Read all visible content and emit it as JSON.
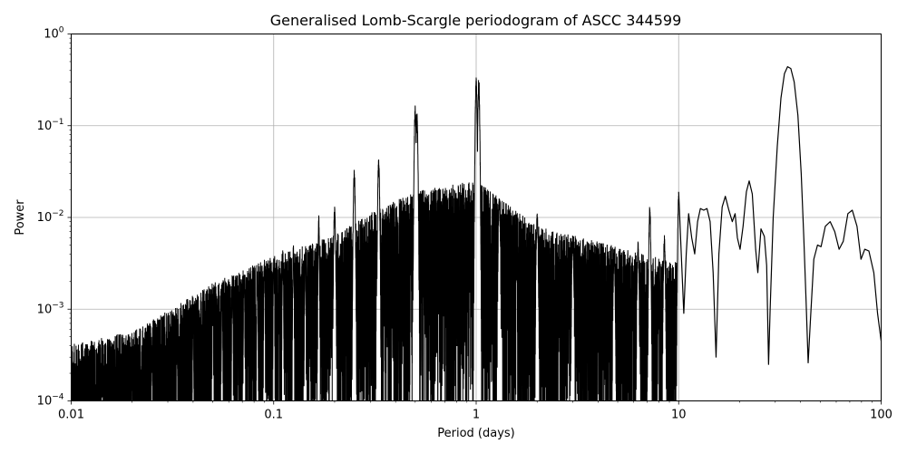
{
  "chart_data": {
    "type": "line",
    "title": "Generalised Lomb-Scargle periodogram of ASCC 344599",
    "xlabel": "Period (days)",
    "ylabel": "Power",
    "xscale": "log",
    "yscale": "log",
    "xlim": [
      0.01,
      100
    ],
    "ylim": [
      0.0001,
      1
    ],
    "grid": true,
    "line_color": "#000000",
    "x_ticks": [
      {
        "value": 0.01,
        "label": "0.01"
      },
      {
        "value": 0.1,
        "label": "0.1"
      },
      {
        "value": 1,
        "label": "1"
      },
      {
        "value": 10,
        "label": "10"
      },
      {
        "value": 100,
        "label": "100"
      }
    ],
    "y_ticks": [
      {
        "value": 0.0001,
        "base": "10",
        "exp": "−4"
      },
      {
        "value": 0.001,
        "base": "10",
        "exp": "−3"
      },
      {
        "value": 0.01,
        "base": "10",
        "exp": "−2"
      },
      {
        "value": 0.1,
        "base": "10",
        "exp": "−1"
      },
      {
        "value": 1,
        "base": "10",
        "exp": "0"
      }
    ],
    "peaks": [
      {
        "period": 1.0,
        "power": 0.34
      },
      {
        "period": 1.03,
        "power": 0.34
      },
      {
        "period": 0.5,
        "power": 0.17
      },
      {
        "period": 0.51,
        "power": 0.14
      },
      {
        "period": 0.33,
        "power": 0.045
      },
      {
        "period": 0.25,
        "power": 0.035
      },
      {
        "period": 0.2,
        "power": 0.014
      },
      {
        "period": 0.167,
        "power": 0.011
      },
      {
        "period": 0.143,
        "power": 0.0045
      },
      {
        "period": 0.125,
        "power": 0.0055
      },
      {
        "period": 0.111,
        "power": 0.0048
      },
      {
        "period": 0.1,
        "power": 0.0038
      },
      {
        "period": 0.09,
        "power": 0.0035
      },
      {
        "period": 0.083,
        "power": 0.0028
      },
      {
        "period": 0.0714,
        "power": 0.0025
      },
      {
        "period": 0.0625,
        "power": 0.0022
      },
      {
        "period": 0.0556,
        "power": 0.0016
      },
      {
        "period": 0.05,
        "power": 0.0012
      },
      {
        "period": 0.04,
        "power": 0.00085
      },
      {
        "period": 0.0333,
        "power": 0.0005
      },
      {
        "period": 0.025,
        "power": 0.00035
      },
      {
        "period": 0.02,
        "power": 0.0002
      },
      {
        "period": 0.0143,
        "power": 0.00018
      },
      {
        "period": 0.0111,
        "power": 0.00017
      },
      {
        "period": 1.3,
        "power": 0.018
      },
      {
        "period": 2.0,
        "power": 0.012
      },
      {
        "period": 3.0,
        "power": 0.0065
      },
      {
        "period": 4.8,
        "power": 0.0045
      },
      {
        "period": 6.3,
        "power": 0.0055
      },
      {
        "period": 7.2,
        "power": 0.014
      },
      {
        "period": 8.5,
        "power": 0.0065
      },
      {
        "period": 10.0,
        "power": 0.019
      }
    ],
    "envelope": [
      {
        "period": 0.01,
        "power": 0.00013
      },
      {
        "period": 0.02,
        "power": 0.00018
      },
      {
        "period": 0.03,
        "power": 0.0003
      },
      {
        "period": 0.05,
        "power": 0.0006
      },
      {
        "period": 0.1,
        "power": 0.0012
      },
      {
        "period": 0.2,
        "power": 0.002
      },
      {
        "period": 0.3,
        "power": 0.0035
      },
      {
        "period": 0.5,
        "power": 0.006
      },
      {
        "period": 1.0,
        "power": 0.008
      },
      {
        "period": 2.0,
        "power": 0.0025
      },
      {
        "period": 5.0,
        "power": 0.0015
      },
      {
        "period": 10.0,
        "power": 0.001
      }
    ],
    "smooth_curve": [
      [
        10.0,
        0.019
      ],
      [
        10.3,
        0.004
      ],
      [
        10.6,
        0.0009
      ],
      [
        10.9,
        0.004
      ],
      [
        11.2,
        0.011
      ],
      [
        11.6,
        0.006
      ],
      [
        12.0,
        0.004
      ],
      [
        12.4,
        0.009
      ],
      [
        12.8,
        0.0125
      ],
      [
        13.3,
        0.012
      ],
      [
        13.8,
        0.0125
      ],
      [
        14.3,
        0.009
      ],
      [
        14.8,
        0.0025
      ],
      [
        15.3,
        0.0003
      ],
      [
        15.8,
        0.004
      ],
      [
        16.4,
        0.013
      ],
      [
        17.0,
        0.017
      ],
      [
        17.7,
        0.012
      ],
      [
        18.4,
        0.009
      ],
      [
        19.0,
        0.011
      ],
      [
        19.5,
        0.006
      ],
      [
        20.1,
        0.0045
      ],
      [
        20.8,
        0.008
      ],
      [
        21.6,
        0.019
      ],
      [
        22.3,
        0.025
      ],
      [
        23.1,
        0.018
      ],
      [
        24.0,
        0.0045
      ],
      [
        24.6,
        0.0025
      ],
      [
        25.5,
        0.0075
      ],
      [
        26.5,
        0.0062
      ],
      [
        27.2,
        0.003
      ],
      [
        27.8,
        0.00025
      ],
      [
        28.3,
        0.001
      ],
      [
        29.3,
        0.01
      ],
      [
        30.7,
        0.06
      ],
      [
        32.0,
        0.2
      ],
      [
        33.3,
        0.37
      ],
      [
        34.5,
        0.44
      ],
      [
        35.8,
        0.42
      ],
      [
        37.2,
        0.3
      ],
      [
        38.8,
        0.13
      ],
      [
        40.3,
        0.03
      ],
      [
        41.5,
        0.006
      ],
      [
        42.6,
        0.0012
      ],
      [
        43.6,
        0.00026
      ],
      [
        44.8,
        0.0008
      ],
      [
        46.5,
        0.0035
      ],
      [
        48.5,
        0.005
      ],
      [
        50.5,
        0.0048
      ],
      [
        53.0,
        0.008
      ],
      [
        56.0,
        0.009
      ],
      [
        59.0,
        0.007
      ],
      [
        62.0,
        0.0045
      ],
      [
        65.0,
        0.0055
      ],
      [
        68.5,
        0.011
      ],
      [
        72.0,
        0.012
      ],
      [
        76.0,
        0.008
      ],
      [
        79.5,
        0.0035
      ],
      [
        83.0,
        0.0045
      ],
      [
        87.0,
        0.0043
      ],
      [
        92.0,
        0.0025
      ],
      [
        96.0,
        0.0009
      ],
      [
        100.0,
        0.00045
      ]
    ]
  }
}
